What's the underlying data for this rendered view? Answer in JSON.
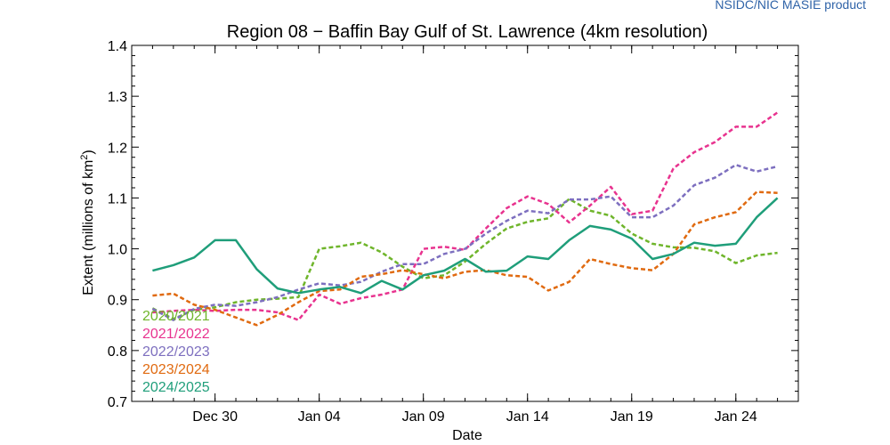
{
  "attribution": "NSIDC/NIC MASIE product",
  "chart_data": {
    "type": "line",
    "title": "Region 08 − Baffin Bay Gulf of St. Lawrence (4km resolution)",
    "xlabel": "Date",
    "ylabel_main": "Extent (millions of km",
    "ylabel_sup": "2",
    "ylabel_close": ")",
    "x_dates": [
      "Dec 27",
      "Dec 28",
      "Dec 29",
      "Dec 30",
      "Dec 31",
      "Jan 01",
      "Jan 02",
      "Jan 03",
      "Jan 04",
      "Jan 05",
      "Jan 06",
      "Jan 07",
      "Jan 08",
      "Jan 09",
      "Jan 10",
      "Jan 11",
      "Jan 12",
      "Jan 13",
      "Jan 14",
      "Jan 15",
      "Jan 16",
      "Jan 17",
      "Jan 18",
      "Jan 19",
      "Jan 20",
      "Jan 21",
      "Jan 22",
      "Jan 23",
      "Jan 24",
      "Jan 25",
      "Jan 26"
    ],
    "xlim": [
      "Dec 26",
      "Jan 27"
    ],
    "x_ticks": [
      "Dec 30",
      "Jan 04",
      "Jan 09",
      "Jan 14",
      "Jan 19",
      "Jan 24"
    ],
    "ylim": [
      0.7,
      1.4
    ],
    "y_ticks": [
      "0.7",
      "0.8",
      "0.9",
      "1.0",
      "1.1",
      "1.2",
      "1.3",
      "1.4"
    ],
    "series": [
      {
        "name": "2020/2021",
        "color": "#6fb52b",
        "dash": "dashed",
        "values": [
          0.883,
          0.862,
          0.88,
          0.885,
          0.895,
          0.9,
          0.902,
          0.905,
          1.0,
          1.005,
          1.012,
          0.993,
          0.965,
          0.942,
          0.948,
          0.975,
          1.01,
          1.04,
          1.053,
          1.06,
          1.098,
          1.075,
          1.065,
          1.03,
          1.01,
          1.003,
          1.002,
          0.995,
          0.972,
          0.987,
          0.992
        ]
      },
      {
        "name": "2021/2022",
        "color": "#e8338f",
        "dash": "dashed",
        "values": [
          0.875,
          0.878,
          0.88,
          0.878,
          0.88,
          0.88,
          0.875,
          0.86,
          0.91,
          0.892,
          0.903,
          0.91,
          0.92,
          1.0,
          1.004,
          0.998,
          1.04,
          1.08,
          1.103,
          1.088,
          1.052,
          1.085,
          1.122,
          1.068,
          1.075,
          1.158,
          1.19,
          1.21,
          1.24,
          1.24,
          1.268
        ]
      },
      {
        "name": "2022/2023",
        "color": "#7d6fbf",
        "dash": "dashed",
        "values": [
          0.882,
          0.86,
          0.882,
          0.89,
          0.888,
          0.895,
          0.905,
          0.92,
          0.932,
          0.928,
          0.935,
          0.955,
          0.97,
          0.97,
          0.99,
          1.0,
          1.03,
          1.055,
          1.075,
          1.07,
          1.097,
          1.097,
          1.103,
          1.062,
          1.062,
          1.085,
          1.125,
          1.14,
          1.165,
          1.152,
          1.162
        ]
      },
      {
        "name": "2023/2024",
        "color": "#e06a10",
        "dash": "dashed",
        "values": [
          0.908,
          0.912,
          0.89,
          0.88,
          0.865,
          0.85,
          0.87,
          0.895,
          0.917,
          0.92,
          0.945,
          0.95,
          0.958,
          0.95,
          0.942,
          0.955,
          0.958,
          0.948,
          0.945,
          0.918,
          0.935,
          0.98,
          0.97,
          0.962,
          0.958,
          0.99,
          1.048,
          1.062,
          1.072,
          1.112,
          1.11
        ]
      },
      {
        "name": "2024/2025",
        "color": "#1f9e7a",
        "dash": "solid",
        "values": [
          0.957,
          0.968,
          0.983,
          1.017,
          1.017,
          0.96,
          0.922,
          0.913,
          0.92,
          0.925,
          0.913,
          0.937,
          0.92,
          0.948,
          0.957,
          0.98,
          0.955,
          0.957,
          0.985,
          0.98,
          1.017,
          1.045,
          1.038,
          1.02,
          0.98,
          0.99,
          1.012,
          1.006,
          1.01,
          1.062,
          1.1
        ]
      }
    ],
    "grid": false,
    "legend_position": "bottom-left"
  }
}
